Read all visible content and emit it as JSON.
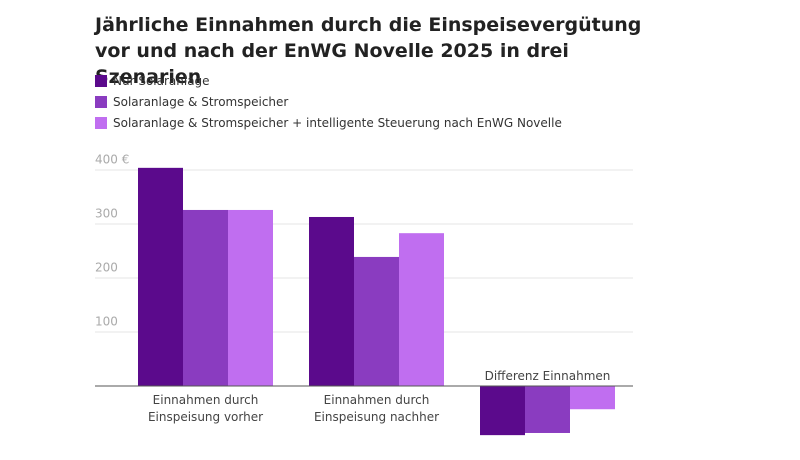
{
  "chart_data": {
    "type": "bar",
    "title": "Jährliche Einnahmen durch die Einspeisevergütung vor und nach der EnWG Novelle 2025 in drei Szenarien",
    "categories": [
      "Einnahmen durch Einspeisung vorher",
      "Einnahmen durch Einspeisung nachher",
      "Differenz Einnahmen"
    ],
    "series": [
      {
        "name": "Nur Solaranlage",
        "color": "#5b0a8c",
        "values": [
          404,
          313,
          -91
        ]
      },
      {
        "name": "Solaranlage & Stromspeicher",
        "color": "#8a3cc0",
        "values": [
          326,
          239,
          -87
        ]
      },
      {
        "name": "Solaranlage & Stromspeicher + intelligente Steuerung nach EnWG Novelle",
        "color": "#c06ef0",
        "values": [
          326,
          283,
          -43
        ]
      }
    ],
    "ylim": [
      -100,
      420
    ],
    "yticks": [
      100,
      200,
      300,
      {
        "value": 400,
        "label": "400 €"
      }
    ],
    "grid": true
  }
}
